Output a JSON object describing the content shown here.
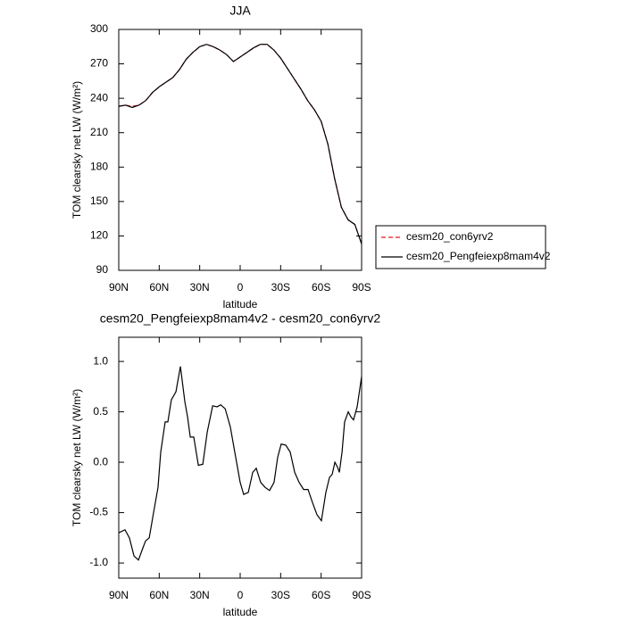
{
  "chart_data": [
    {
      "type": "line",
      "title": "JJA",
      "xlabel": "latitude",
      "ylabel": "TOM clearsky net LW (W/m²)",
      "x": [
        90,
        85,
        80,
        75,
        70,
        65,
        60,
        55,
        50,
        45,
        40,
        35,
        30,
        25,
        20,
        15,
        10,
        5,
        0,
        -5,
        -10,
        -15,
        -20,
        -25,
        -30,
        -35,
        -40,
        -45,
        -50,
        -55,
        -60,
        -65,
        -70,
        -75,
        -80,
        -85,
        -90
      ],
      "series": [
        {
          "name": "cesm20_con6yrv2",
          "color": "#e41a1c",
          "line_style": "dashed",
          "values": [
            233,
            234,
            233,
            234,
            238,
            245,
            250,
            254,
            258,
            265,
            274,
            280,
            285,
            287,
            285,
            282,
            278,
            272,
            276,
            280,
            284,
            287,
            287,
            282,
            275,
            266,
            257,
            248,
            238,
            230,
            220,
            200,
            170,
            145,
            134,
            130,
            113
          ]
        },
        {
          "name": "cesm20_Pengfeiexp8mam4v2",
          "color": "#000000",
          "line_style": "solid",
          "values": [
            233,
            234,
            232,
            234,
            238,
            245,
            250,
            254,
            258,
            265,
            274,
            280,
            285,
            287,
            285,
            282,
            278,
            272,
            276,
            280,
            284,
            287,
            287,
            282,
            275,
            266,
            257,
            248,
            238,
            230,
            220,
            200,
            170,
            145,
            134,
            130,
            113
          ]
        }
      ],
      "xlim": [
        90,
        -90
      ],
      "xticks": [
        {
          "value": 90,
          "label": "90N"
        },
        {
          "value": 60,
          "label": "60N"
        },
        {
          "value": 30,
          "label": "30N"
        },
        0,
        {
          "value": -30,
          "label": "30S"
        },
        {
          "value": -60,
          "label": "60S"
        },
        {
          "value": -90,
          "label": "90S"
        }
      ],
      "ylim": [
        90,
        300
      ],
      "yticks": [
        90,
        120,
        150,
        180,
        210,
        240,
        270,
        300
      ],
      "legend": "outside right"
    },
    {
      "type": "line",
      "title": "cesm20_Pengfeiexp8mam4v2 - cesm20_con6yrv2",
      "xlabel": "latitude",
      "ylabel": "TOM clearsky net LW (W/m²)",
      "x": [
        90,
        85.4,
        82.1,
        78.7,
        75.4,
        72.1,
        70.1,
        67.4,
        64.2,
        60.9,
        58.9,
        55.6,
        53.6,
        51.0,
        47.6,
        44.3,
        41.0,
        39.0,
        37.0,
        34.4,
        31.0,
        27.7,
        24.4,
        20.4,
        17.1,
        14.4,
        11.1,
        7.3,
        4.0,
        0,
        -2.6,
        -6.0,
        -9.3,
        -11.9,
        -15.2,
        -18.5,
        -21.8,
        -25.1,
        -27.8,
        -30.4,
        -33.8,
        -37.1,
        -40.4,
        -43.7,
        -47.0,
        -50.3,
        -53.6,
        -56.9,
        -60.2,
        -63.5,
        -66.2,
        -68.2,
        -70.2,
        -72.2,
        -73.5,
        -75.5,
        -77.4,
        -80.1,
        -82.1,
        -84.0,
        -86.7,
        -90
      ],
      "series": [
        {
          "name": null,
          "color": "#000000",
          "line_style": "solid",
          "values": [
            -0.7,
            -0.67,
            -0.75,
            -0.93,
            -0.97,
            -0.85,
            -0.78,
            -0.75,
            -0.5,
            -0.25,
            0.1,
            0.4,
            0.4,
            0.62,
            0.7,
            0.95,
            0.6,
            0.45,
            0.25,
            0.25,
            -0.03,
            -0.02,
            0.3,
            0.56,
            0.55,
            0.57,
            0.53,
            0.35,
            0.1,
            -0.2,
            -0.32,
            -0.3,
            -0.1,
            -0.06,
            -0.2,
            -0.25,
            -0.28,
            -0.2,
            0.05,
            0.18,
            0.17,
            0.1,
            -0.1,
            -0.2,
            -0.27,
            -0.27,
            -0.4,
            -0.52,
            -0.58,
            -0.3,
            -0.15,
            -0.12,
            0.0,
            -0.05,
            -0.1,
            0.1,
            0.4,
            0.5,
            0.45,
            0.42,
            0.55,
            0.85
          ]
        }
      ],
      "xlim": [
        90,
        -90
      ],
      "xticks": [
        {
          "value": 90,
          "label": "90N"
        },
        {
          "value": 60,
          "label": "60N"
        },
        {
          "value": 30,
          "label": "30N"
        },
        0,
        {
          "value": -30,
          "label": "30S"
        },
        {
          "value": -60,
          "label": "60S"
        },
        {
          "value": -90,
          "label": "90S"
        }
      ],
      "ylim": [
        -1.15,
        1.24
      ],
      "yticks": [
        {
          "value": -1,
          "label": "-1.0"
        },
        -0.5,
        {
          "value": 0,
          "label": "0.0"
        },
        0.5,
        {
          "value": 1,
          "label": "1.0"
        }
      ]
    }
  ]
}
